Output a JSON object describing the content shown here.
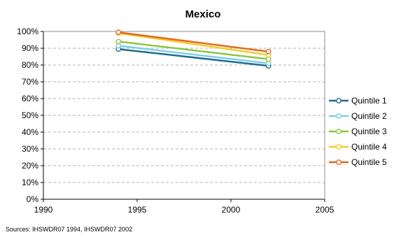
{
  "chart_data": {
    "type": "line",
    "title": "Mexico",
    "xlabel": "",
    "ylabel": "",
    "xlim": [
      1990,
      2005
    ],
    "ylim": [
      0,
      100
    ],
    "x_ticks": [
      "1990",
      "1995",
      "2000",
      "2005"
    ],
    "y_ticks": [
      "0%",
      "10%",
      "20%",
      "30%",
      "40%",
      "50%",
      "60%",
      "70%",
      "80%",
      "90%",
      "100%"
    ],
    "grid": true,
    "legend_position": "right",
    "series": [
      {
        "name": "Quintile 1",
        "color": "#1f6b8f",
        "points": [
          [
            1994,
            89.5
          ],
          [
            2002,
            79.5
          ]
        ]
      },
      {
        "name": "Quintile 2",
        "color": "#7fcde8",
        "points": [
          [
            1994,
            91.5
          ],
          [
            2002,
            81.0
          ]
        ]
      },
      {
        "name": "Quintile 3",
        "color": "#8cc63f",
        "points": [
          [
            1994,
            94.0
          ],
          [
            2002,
            83.5
          ]
        ]
      },
      {
        "name": "Quintile 4",
        "color": "#f2cc2a",
        "points": [
          [
            1994,
            99.0
          ],
          [
            2002,
            86.0
          ]
        ]
      },
      {
        "name": "Quintile 5",
        "color": "#e0691f",
        "points": [
          [
            1994,
            99.5
          ],
          [
            2002,
            88.0
          ]
        ]
      }
    ]
  },
  "source_note": "Sources: IHSWDR07 1994, IHSWDR07 2002"
}
